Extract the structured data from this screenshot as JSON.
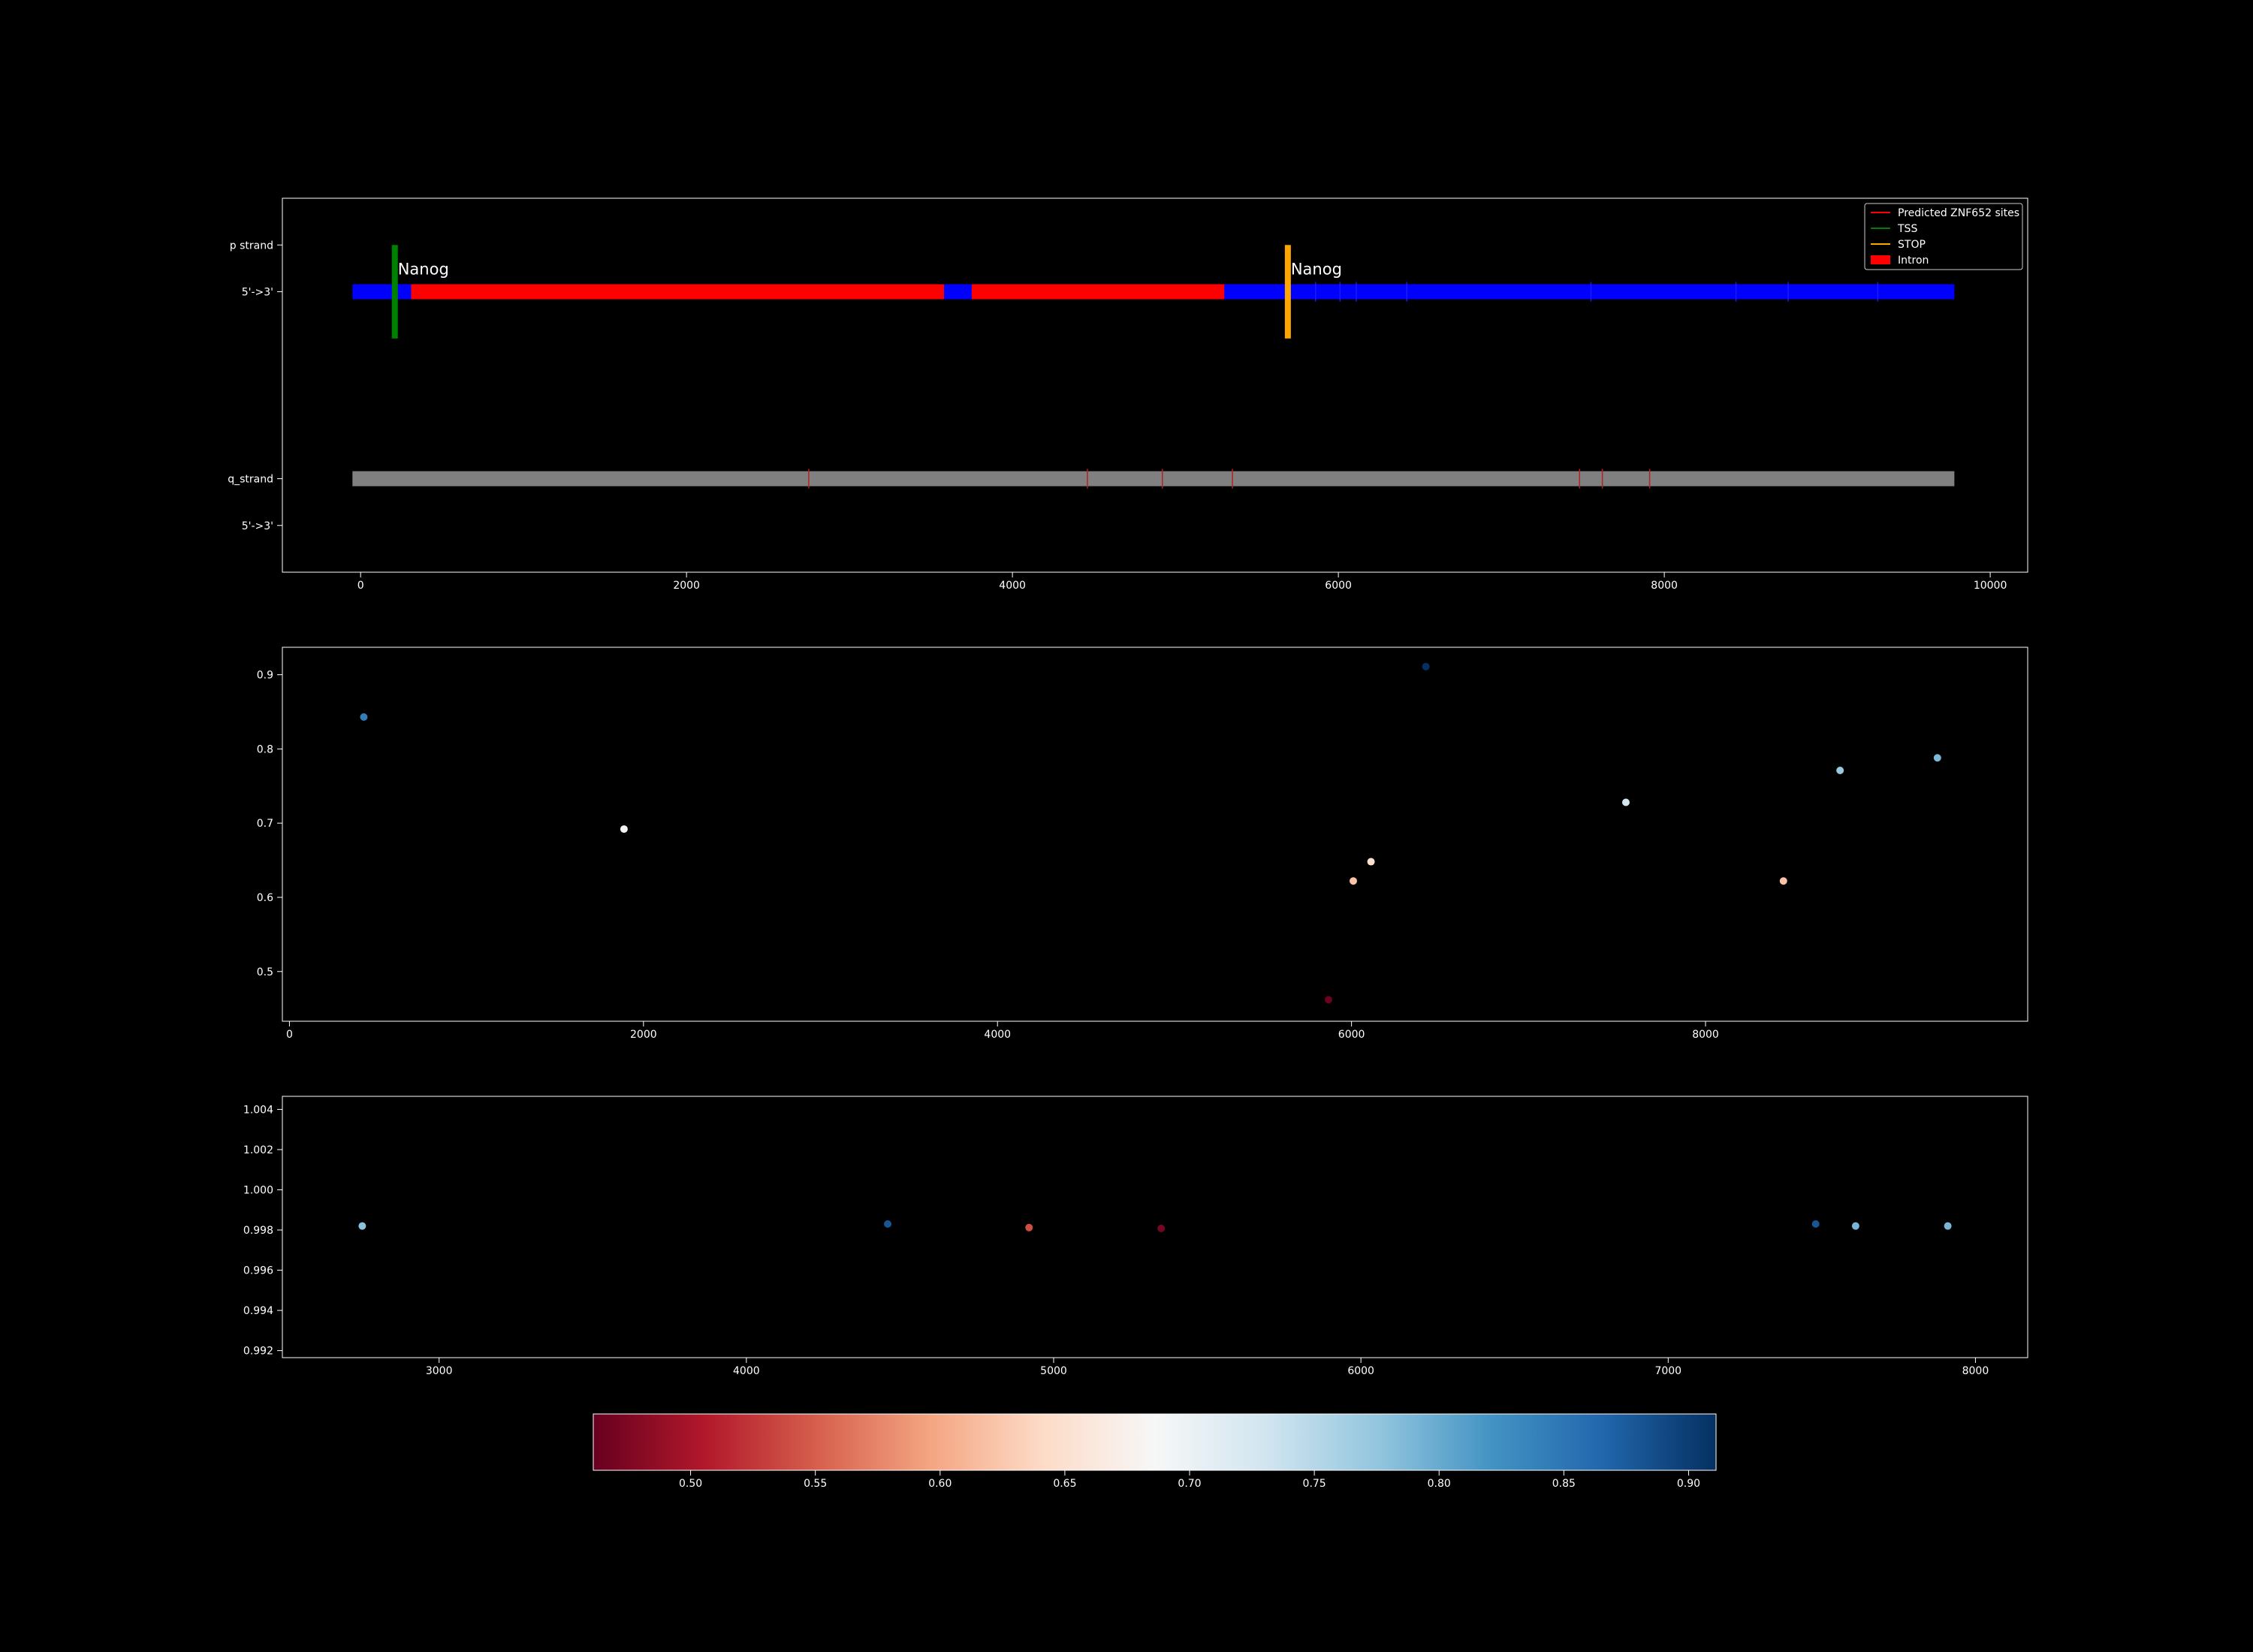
{
  "colors": {
    "background": "#000000",
    "axes_edge": "#ffffff",
    "text": "#ffffff",
    "p_strand_bar": "#0000ff",
    "intron": "#ff0000",
    "q_strand_bar": "#808080",
    "tss": "#008000",
    "stop": "#ffa500",
    "site_tick_p": "#1a1aff",
    "site_tick_q": "#b22222"
  },
  "chart_data": [
    {
      "type": "gene-track",
      "xlim": [
        -480,
        10230
      ],
      "x_ticks": [
        "0",
        "2000",
        "4000",
        "6000",
        "8000",
        "10000"
      ],
      "x_tick_values": [
        0,
        2000,
        4000,
        6000,
        8000,
        10000
      ],
      "y_ticks": [
        {
          "label": "p strand",
          "level": 3
        },
        {
          "label": "5'->3'",
          "level": 2
        },
        {
          "label": "q_strand",
          "level": -2
        },
        {
          "label": "5'->3'",
          "level": -3
        }
      ],
      "ylim": [
        -4,
        4
      ],
      "p_strand": {
        "start": -50,
        "end": 9780,
        "level": 2
      },
      "introns": [
        {
          "start": 310,
          "end": 3580
        },
        {
          "start": 3750,
          "end": 5300
        }
      ],
      "q_strand": {
        "start": -50,
        "end": 9780,
        "level": -2
      },
      "p_sites": [
        5860,
        6010,
        6110,
        6420,
        7550,
        8440,
        8760,
        9310
      ],
      "q_sites": [
        2750,
        4460,
        4920,
        5350,
        7480,
        7620,
        7910
      ],
      "markers": [
        {
          "type": "TSS",
          "x": 210,
          "label": "Nanog"
        },
        {
          "type": "STOP",
          "x": 5690,
          "label": "Nanog"
        }
      ],
      "legend": {
        "placement": "top-right",
        "entries": [
          {
            "label": "Predicted ZNF652 sites",
            "kind": "line",
            "color": "#ff0000"
          },
          {
            "label": "TSS",
            "kind": "line",
            "color": "#008000"
          },
          {
            "label": "STOP",
            "kind": "line",
            "color": "#ffa500"
          },
          {
            "label": "Intron",
            "kind": "patch",
            "color": "#ff0000"
          }
        ]
      }
    },
    {
      "type": "scatter",
      "xlim": [
        -40,
        9820
      ],
      "ylim": [
        0.433,
        0.937
      ],
      "x_ticks": [
        "0",
        "2000",
        "4000",
        "6000",
        "8000"
      ],
      "x_tick_values": [
        0,
        2000,
        4000,
        6000,
        8000
      ],
      "y_ticks": [
        "0.5",
        "0.6",
        "0.7",
        "0.8",
        "0.9"
      ],
      "y_tick_values": [
        0.5,
        0.6,
        0.7,
        0.8,
        0.9
      ],
      "points": [
        {
          "x": 420,
          "y": 0.843
        },
        {
          "x": 1890,
          "y": 0.692
        },
        {
          "x": 5870,
          "y": 0.462
        },
        {
          "x": 6010,
          "y": 0.622
        },
        {
          "x": 6110,
          "y": 0.648
        },
        {
          "x": 6420,
          "y": 0.911
        },
        {
          "x": 7550,
          "y": 0.728
        },
        {
          "x": 8440,
          "y": 0.622
        },
        {
          "x": 8760,
          "y": 0.771
        },
        {
          "x": 9310,
          "y": 0.788
        }
      ]
    },
    {
      "type": "scatter",
      "xlim": [
        2490,
        8170
      ],
      "ylim": [
        0.99165,
        1.00465
      ],
      "x_ticks": [
        "3000",
        "4000",
        "5000",
        "6000",
        "7000",
        "8000"
      ],
      "x_tick_values": [
        3000,
        4000,
        5000,
        6000,
        7000,
        8000
      ],
      "y_ticks": [
        "0.992",
        "0.994",
        "0.996",
        "0.998",
        "1.000",
        "1.002",
        "1.004"
      ],
      "y_tick_values": [
        0.992,
        0.994,
        0.996,
        0.998,
        1.0,
        1.002,
        1.004
      ],
      "points": [
        {
          "x": 2750,
          "y": 0.9982,
          "c": 0.78
        },
        {
          "x": 4460,
          "y": 0.9983,
          "c": 0.88
        },
        {
          "x": 4920,
          "y": 0.99812,
          "c": 0.54
        },
        {
          "x": 5350,
          "y": 0.99808,
          "c": 0.47
        },
        {
          "x": 7480,
          "y": 0.9983,
          "c": 0.88
        },
        {
          "x": 7610,
          "y": 0.9982,
          "c": 0.79
        },
        {
          "x": 7910,
          "y": 0.9982,
          "c": 0.79
        }
      ]
    },
    {
      "type": "colorbar",
      "cmap": "RdBu",
      "range": [
        0.461,
        0.911
      ],
      "ticks": [
        "0.50",
        "0.55",
        "0.60",
        "0.65",
        "0.70",
        "0.75",
        "0.80",
        "0.85",
        "0.90"
      ],
      "tick_values": [
        0.5,
        0.55,
        0.6,
        0.65,
        0.7,
        0.75,
        0.8,
        0.85,
        0.9
      ]
    }
  ]
}
